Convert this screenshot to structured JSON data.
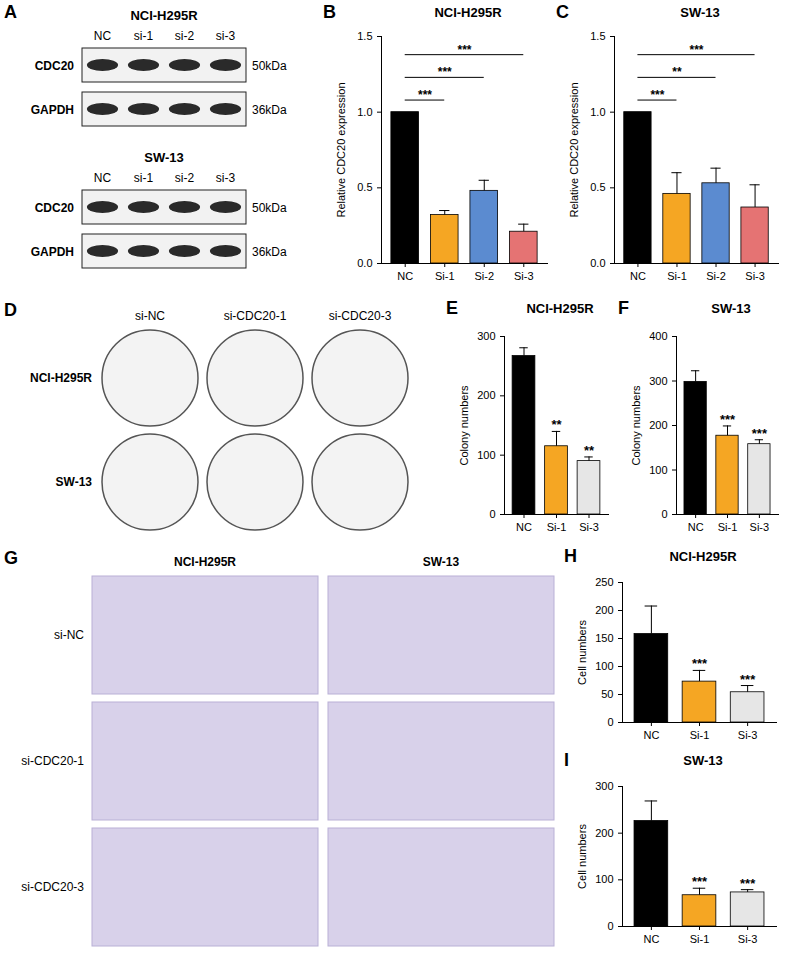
{
  "chart_data": [
    {
      "type": "bar",
      "panel": "B",
      "title": "NCI-H295R",
      "y_label": "Relative CDC20 expression",
      "categories": [
        "NC",
        "Si-1",
        "Si-2",
        "Si-3"
      ],
      "values": [
        1.0,
        0.32,
        0.48,
        0.21
      ],
      "errors": [
        0,
        0.03,
        0.07,
        0.05
      ],
      "colors": [
        "#000000",
        "#f5a623",
        "#5b8bd0",
        "#e57373"
      ],
      "ylim": [
        0,
        1.5
      ],
      "yticks": [
        {
          "value": 0,
          "label": "0.0"
        },
        {
          "value": 0.5,
          "label": "0.5"
        },
        {
          "value": 1,
          "label": "1.0"
        },
        {
          "value": 1.5,
          "label": "1.5"
        }
      ],
      "comparisons": [
        {
          "from": "NC",
          "to": "Si-1",
          "label": "***"
        },
        {
          "from": "NC",
          "to": "Si-2",
          "label": "***"
        },
        {
          "from": "NC",
          "to": "Si-3",
          "label": "***"
        }
      ]
    },
    {
      "type": "bar",
      "panel": "C",
      "title": "SW-13",
      "y_label": "Relative CDC20 expression",
      "categories": [
        "NC",
        "Si-1",
        "Si-2",
        "Si-3"
      ],
      "values": [
        1.0,
        0.46,
        0.53,
        0.37
      ],
      "errors": [
        0,
        0.14,
        0.1,
        0.15
      ],
      "colors": [
        "#000000",
        "#f5a623",
        "#5b8bd0",
        "#e57373"
      ],
      "ylim": [
        0,
        1.5
      ],
      "yticks": [
        {
          "value": 0,
          "label": "0.0"
        },
        {
          "value": 0.5,
          "label": "0.5"
        },
        {
          "value": 1,
          "label": "1.0"
        },
        {
          "value": 1.5,
          "label": "1.5"
        }
      ],
      "comparisons": [
        {
          "from": "NC",
          "to": "Si-1",
          "label": "***"
        },
        {
          "from": "NC",
          "to": "Si-2",
          "label": "**"
        },
        {
          "from": "NC",
          "to": "Si-3",
          "label": "***"
        }
      ]
    },
    {
      "type": "bar",
      "panel": "E",
      "title": "NCI-H295R",
      "y_label": "Colony numbers",
      "categories": [
        "NC",
        "Si-1",
        "Si-3"
      ],
      "values": [
        267,
        115,
        90
      ],
      "errors": [
        14,
        25,
        7
      ],
      "colors": [
        "#000000",
        "#f5a623",
        "#e6e6e6"
      ],
      "ylim": [
        0,
        300
      ],
      "yticks": [
        0,
        100,
        200,
        300
      ],
      "significance": [
        null,
        "**",
        "**"
      ]
    },
    {
      "type": "bar",
      "panel": "F",
      "title": "SW-13",
      "y_label": "Colony numbers",
      "categories": [
        "NC",
        "Si-1",
        "Si-3"
      ],
      "values": [
        298,
        177,
        158
      ],
      "errors": [
        25,
        22,
        10
      ],
      "colors": [
        "#000000",
        "#f5a623",
        "#e6e6e6"
      ],
      "ylim": [
        0,
        400
      ],
      "yticks": [
        0,
        100,
        200,
        300,
        400
      ],
      "significance": [
        null,
        "***",
        "***"
      ]
    },
    {
      "type": "bar",
      "panel": "H",
      "title": "NCI-H295R",
      "y_label": "Cell numbers",
      "categories": [
        "NC",
        "Si-1",
        "Si-3"
      ],
      "values": [
        158,
        73,
        54
      ],
      "errors": [
        50,
        20,
        12
      ],
      "colors": [
        "#000000",
        "#f5a623",
        "#e6e6e6"
      ],
      "ylim": [
        0,
        250
      ],
      "yticks": [
        0,
        50,
        100,
        150,
        200,
        250
      ],
      "significance": [
        null,
        "***",
        "***"
      ]
    },
    {
      "type": "bar",
      "panel": "I",
      "title": "SW-13",
      "y_label": "Cell numbers",
      "categories": [
        "NC",
        "Si-1",
        "Si-3"
      ],
      "values": [
        226,
        67,
        73
      ],
      "errors": [
        43,
        15,
        6
      ],
      "colors": [
        "#000000",
        "#f5a623",
        "#e6e6e6"
      ],
      "ylim": [
        0,
        300
      ],
      "yticks": [
        0,
        100,
        200,
        300
      ],
      "significance": [
        null,
        "***",
        "***"
      ]
    }
  ],
  "blot": {
    "panel": "A",
    "groups": [
      {
        "title": "NCI-H295R",
        "lanes": [
          "NC",
          "si-1",
          "si-2",
          "si-3"
        ],
        "rows": [
          {
            "protein": "CDC20",
            "size": "50kDa"
          },
          {
            "protein": "GAPDH",
            "size": "36kDa"
          }
        ]
      },
      {
        "title": "SW-13",
        "lanes": [
          "NC",
          "si-1",
          "si-2",
          "si-3"
        ],
        "rows": [
          {
            "protein": "CDC20",
            "size": "50kDa"
          },
          {
            "protein": "GAPDH",
            "size": "36kDa"
          }
        ]
      }
    ]
  },
  "colony_images": {
    "panel": "D",
    "columns": [
      "si-NC",
      "si-CDC20-1",
      "si-CDC20-3"
    ],
    "rows": [
      "NCI-H295R",
      "SW-13"
    ]
  },
  "transwell_images": {
    "panel": "G",
    "columns": [
      "NCI-H295R",
      "SW-13"
    ],
    "rows": [
      "si-NC",
      "si-CDC20-1",
      "si-CDC20-3"
    ]
  }
}
